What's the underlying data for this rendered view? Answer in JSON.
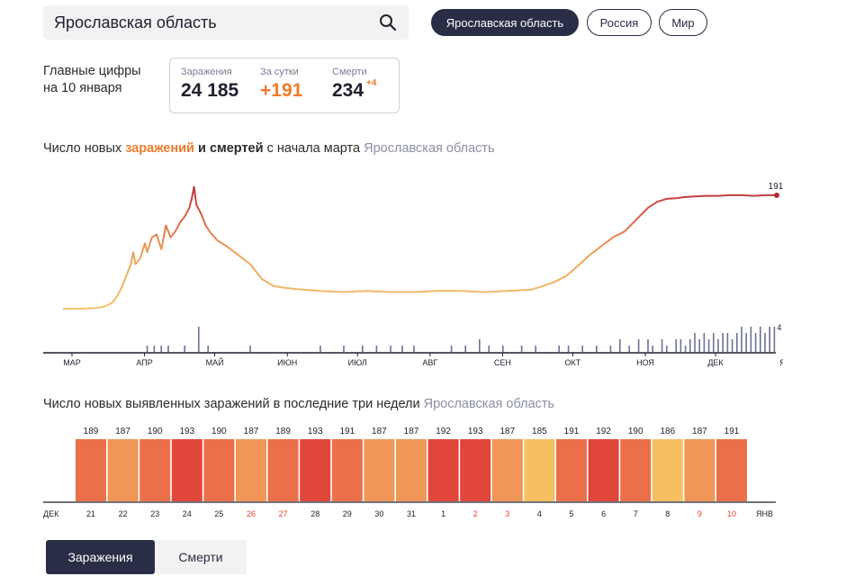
{
  "search": {
    "value": "Ярославская область",
    "icon": "search-icon"
  },
  "scope_tabs": [
    {
      "label": "Ярославская область",
      "active": true
    },
    {
      "label": "Россия",
      "active": false
    },
    {
      "label": "Мир",
      "active": false
    }
  ],
  "summary": {
    "label_line1": "Главные цифры",
    "label_line2": "на 10 января",
    "cases_head": "Заражения",
    "cases_value": "24 185",
    "daily_head": "За сутки",
    "daily_value": "+191",
    "deaths_head": "Смерти",
    "deaths_value": "234",
    "deaths_delta": "+4"
  },
  "line_section": {
    "title_part1": "Число новых ",
    "title_hl": "заражений",
    "title_part2": " и смертей",
    "title_part3": " с начала марта ",
    "region": "Ярославская область"
  },
  "bar_section": {
    "title": "Число новых выявленных заражений в последние три недели",
    "region": "Ярославская область"
  },
  "bottom_tabs": [
    {
      "label": "Заражения",
      "active": true
    },
    {
      "label": "Смерти",
      "active": false
    }
  ],
  "colors": {
    "accent": "#ef7b2b",
    "dark": "#2a2d46",
    "grey_text": "#8c8fa3",
    "line_low": "#f2c46d",
    "line_high": "#b3233b",
    "deaths_bar": "#6e7193",
    "weekend": "#e8402d"
  },
  "chart_data": [
    {
      "type": "line",
      "title": "Число новых заражений и смертей с начала марта",
      "x_ticks": [
        "МАР",
        "АПР",
        "МАЙ",
        "ИЮН",
        "ИЮЛ",
        "АВГ",
        "СЕН",
        "ОКТ",
        "НОЯ",
        "ДЕК",
        "ЯНВ"
      ],
      "series": [
        {
          "name": "заражения",
          "points": [
            [
              0,
              0
            ],
            [
              8,
              0
            ],
            [
              14,
              1
            ],
            [
              18,
              4
            ],
            [
              21,
              10
            ],
            [
              23,
              20
            ],
            [
              25,
              35
            ],
            [
              27,
              55
            ],
            [
              29,
              75
            ],
            [
              30,
              95
            ],
            [
              31,
              75
            ],
            [
              33,
              85
            ],
            [
              35,
              110
            ],
            [
              36,
              95
            ],
            [
              38,
              120
            ],
            [
              40,
              125
            ],
            [
              42,
              100
            ],
            [
              44,
              140
            ],
            [
              46,
              120
            ],
            [
              48,
              130
            ],
            [
              50,
              145
            ],
            [
              52,
              155
            ],
            [
              54,
              170
            ],
            [
              55,
              185
            ],
            [
              56,
              205
            ],
            [
              57,
              175
            ],
            [
              59,
              160
            ],
            [
              61,
              140
            ],
            [
              63,
              128
            ],
            [
              66,
              115
            ],
            [
              70,
              105
            ],
            [
              75,
              90
            ],
            [
              80,
              75
            ],
            [
              85,
              50
            ],
            [
              90,
              38
            ],
            [
              95,
              35
            ],
            [
              100,
              33
            ],
            [
              110,
              30
            ],
            [
              120,
              28
            ],
            [
              130,
              30
            ],
            [
              140,
              28
            ],
            [
              150,
              28
            ],
            [
              160,
              30
            ],
            [
              170,
              30
            ],
            [
              180,
              28
            ],
            [
              190,
              30
            ],
            [
              200,
              32
            ],
            [
              205,
              38
            ],
            [
              210,
              45
            ],
            [
              215,
              55
            ],
            [
              220,
              72
            ],
            [
              225,
              90
            ],
            [
              230,
              105
            ],
            [
              235,
              120
            ],
            [
              240,
              130
            ],
            [
              245,
              150
            ],
            [
              250,
              170
            ],
            [
              254,
              180
            ],
            [
              258,
              185
            ],
            [
              262,
              186
            ],
            [
              266,
              188
            ],
            [
              270,
              189
            ],
            [
              275,
              190
            ],
            [
              280,
              190
            ],
            [
              285,
              191
            ],
            [
              290,
              191
            ],
            [
              295,
              190
            ],
            [
              300,
              191
            ],
            [
              305,
              191
            ]
          ],
          "last_label": "191"
        },
        {
          "name": "смерти",
          "type": "bar",
          "values": [
            [
              36,
              1
            ],
            [
              39,
              1
            ],
            [
              42,
              1
            ],
            [
              45,
              1
            ],
            [
              52,
              1
            ],
            [
              58,
              4
            ],
            [
              62,
              1
            ],
            [
              80,
              1
            ],
            [
              110,
              1
            ],
            [
              120,
              1
            ],
            [
              128,
              1
            ],
            [
              134,
              1
            ],
            [
              140,
              1
            ],
            [
              145,
              1
            ],
            [
              150,
              1
            ],
            [
              166,
              1
            ],
            [
              172,
              1
            ],
            [
              178,
              2
            ],
            [
              182,
              1
            ],
            [
              188,
              1
            ],
            [
              196,
              1
            ],
            [
              202,
              1
            ],
            [
              212,
              1
            ],
            [
              216,
              1
            ],
            [
              222,
              1
            ],
            [
              228,
              1
            ],
            [
              234,
              1
            ],
            [
              238,
              2
            ],
            [
              242,
              1
            ],
            [
              246,
              2
            ],
            [
              250,
              2
            ],
            [
              252,
              1
            ],
            [
              256,
              2
            ],
            [
              258,
              1
            ],
            [
              262,
              2
            ],
            [
              264,
              2
            ],
            [
              266,
              1
            ],
            [
              268,
              2
            ],
            [
              270,
              3
            ],
            [
              272,
              2
            ],
            [
              274,
              3
            ],
            [
              276,
              2
            ],
            [
              278,
              3
            ],
            [
              280,
              2
            ],
            [
              282,
              3
            ],
            [
              284,
              3
            ],
            [
              286,
              2
            ],
            [
              288,
              3
            ],
            [
              290,
              4
            ],
            [
              292,
              3
            ],
            [
              294,
              4
            ],
            [
              296,
              3
            ],
            [
              298,
              4
            ],
            [
              300,
              3
            ],
            [
              302,
              4
            ],
            [
              304,
              4
            ]
          ],
          "last_label": "4"
        }
      ]
    },
    {
      "type": "bar",
      "title": "Число новых выявленных заражений в последние три недели",
      "x_start_label": "ДЕК",
      "x_end_label": "ЯНВ",
      "categories": [
        "21",
        "22",
        "23",
        "24",
        "25",
        "26",
        "27",
        "28",
        "29",
        "30",
        "31",
        "1",
        "2",
        "3",
        "4",
        "5",
        "6",
        "7",
        "8",
        "9",
        "10"
      ],
      "weekend": [
        false,
        false,
        false,
        false,
        false,
        true,
        true,
        false,
        false,
        false,
        false,
        false,
        true,
        true,
        false,
        false,
        false,
        false,
        false,
        true,
        true
      ],
      "values": [
        189,
        187,
        190,
        193,
        190,
        187,
        189,
        193,
        191,
        187,
        187,
        192,
        193,
        187,
        185,
        191,
        192,
        190,
        186,
        187,
        191
      ]
    }
  ]
}
